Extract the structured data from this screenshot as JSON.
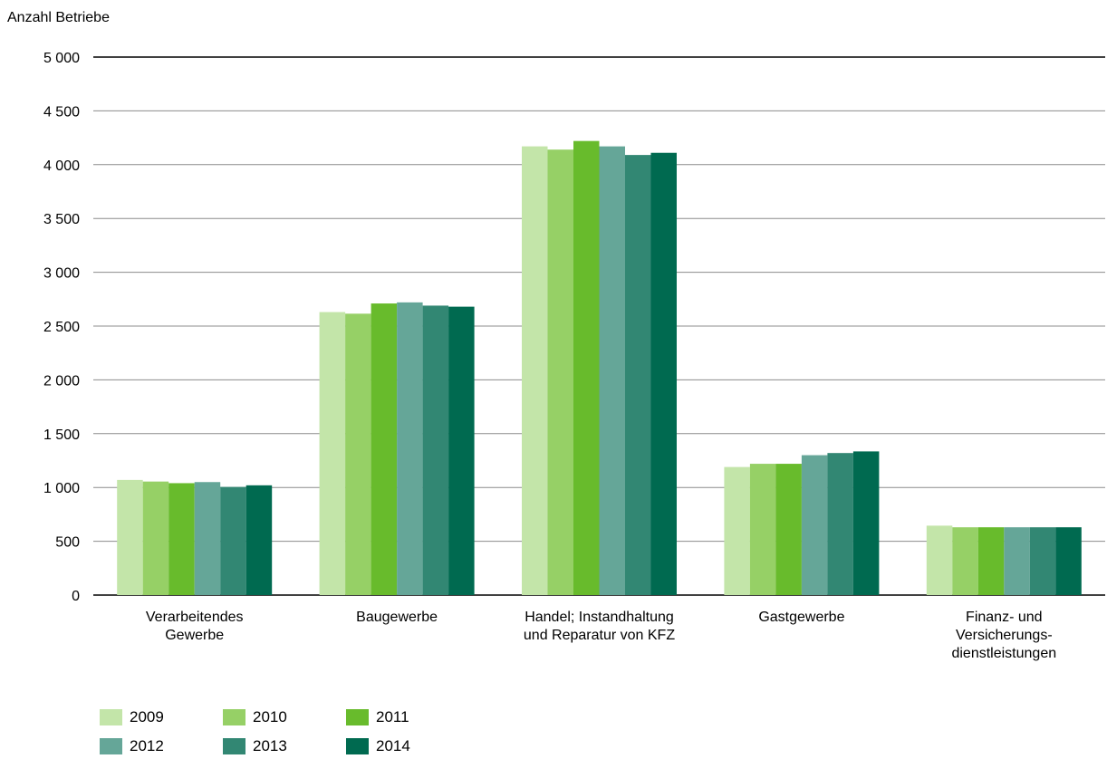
{
  "chart_data": {
    "type": "bar",
    "ylabel": "Anzahl Betriebe",
    "ylim": [
      0,
      5000
    ],
    "yticks": [
      "0",
      "500",
      "1 000",
      "1 500",
      "2 000",
      "2 500",
      "3 000",
      "3 500",
      "4 000",
      "4 500",
      "5 000"
    ],
    "categories": [
      [
        "Verarbeitendes",
        "Gewerbe"
      ],
      [
        "Baugewerbe"
      ],
      [
        "Handel; Instandhaltung",
        "und Reparatur von KFZ"
      ],
      [
        "Gastgewerbe"
      ],
      [
        "Finanz- und",
        "Versicherungs-",
        "dienstleistungen"
      ]
    ],
    "series": [
      {
        "name": "2009",
        "color": "#c3e5a9",
        "values": [
          1070,
          2630,
          4170,
          1190,
          645
        ]
      },
      {
        "name": "2010",
        "color": "#96d066",
        "values": [
          1055,
          2615,
          4140,
          1220,
          630
        ]
      },
      {
        "name": "2011",
        "color": "#68bb2c",
        "values": [
          1040,
          2710,
          4220,
          1220,
          630
        ]
      },
      {
        "name": "2012",
        "color": "#65a698",
        "values": [
          1050,
          2720,
          4170,
          1300,
          630
        ]
      },
      {
        "name": "2013",
        "color": "#328773",
        "values": [
          1005,
          2690,
          4090,
          1320,
          630
        ]
      },
      {
        "name": "2014",
        "color": "#006a50",
        "values": [
          1020,
          2680,
          4110,
          1335,
          630
        ]
      }
    ],
    "grid": true,
    "legend_position": "bottom-left"
  }
}
